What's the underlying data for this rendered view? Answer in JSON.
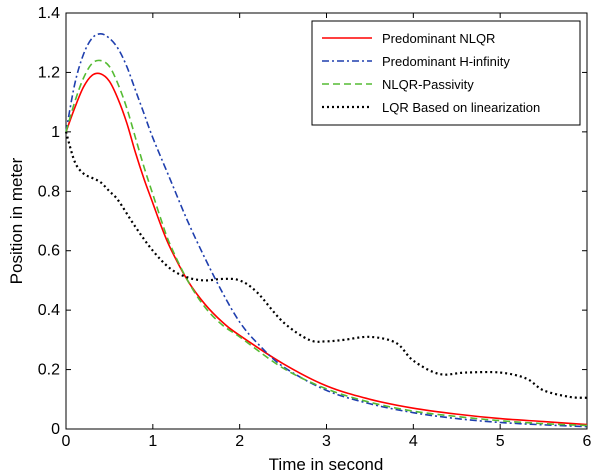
{
  "chart_data": {
    "type": "line",
    "xlabel": "Time in second",
    "ylabel": "Position in meter",
    "xlim": [
      0,
      6
    ],
    "ylim": [
      0,
      1.4
    ],
    "xticks": [
      0,
      1,
      2,
      3,
      4,
      5,
      6
    ],
    "yticks": [
      0,
      0.2,
      0.4,
      0.6,
      0.8,
      1,
      1.2,
      1.4
    ],
    "xtick_labels": [
      "0",
      "1",
      "2",
      "3",
      "4",
      "5",
      "6"
    ],
    "ytick_labels": [
      "0",
      "0.2",
      "0.4",
      "0.6",
      "0.8",
      "1",
      "1.2",
      "1.4"
    ],
    "grid": false,
    "legend_position": "top-right",
    "series": [
      {
        "name": "Predominant NLQR",
        "color": "#ff0000",
        "style": "solid",
        "x": [
          0,
          0.1,
          0.2,
          0.3,
          0.4,
          0.5,
          0.6,
          0.7,
          0.8,
          0.9,
          1.0,
          1.1,
          1.2,
          1.4,
          1.6,
          1.8,
          2.0,
          2.5,
          3.0,
          3.5,
          4.0,
          4.5,
          5.0,
          5.5,
          6.0
        ],
        "y": [
          1.0,
          1.08,
          1.15,
          1.19,
          1.195,
          1.17,
          1.11,
          1.03,
          0.93,
          0.84,
          0.76,
          0.68,
          0.61,
          0.5,
          0.42,
          0.36,
          0.315,
          0.22,
          0.145,
          0.1,
          0.07,
          0.05,
          0.035,
          0.025,
          0.015
        ]
      },
      {
        "name": "Predominant H-infinity",
        "color": "#1f3fae",
        "style": "dashdot",
        "x": [
          0,
          0.1,
          0.2,
          0.3,
          0.4,
          0.5,
          0.6,
          0.7,
          0.8,
          0.9,
          1.0,
          1.2,
          1.4,
          1.6,
          1.8,
          2.0,
          2.2,
          2.5,
          3.0,
          3.5,
          4.0,
          4.5,
          5.0,
          5.5,
          6.0
        ],
        "y": [
          1.0,
          1.16,
          1.26,
          1.315,
          1.33,
          1.315,
          1.28,
          1.22,
          1.14,
          1.06,
          0.98,
          0.84,
          0.7,
          0.575,
          0.46,
          0.36,
          0.29,
          0.21,
          0.13,
          0.085,
          0.055,
          0.035,
          0.022,
          0.014,
          0.008
        ]
      },
      {
        "name": "NLQR-Passivity",
        "color": "#55bb33",
        "style": "dashed",
        "x": [
          0,
          0.1,
          0.2,
          0.3,
          0.4,
          0.5,
          0.6,
          0.7,
          0.8,
          0.9,
          1.0,
          1.1,
          1.2,
          1.4,
          1.6,
          1.8,
          2.0,
          2.5,
          3.0,
          3.5,
          4.0,
          4.5,
          5.0,
          5.5,
          6.0
        ],
        "y": [
          1.0,
          1.1,
          1.18,
          1.23,
          1.24,
          1.22,
          1.16,
          1.08,
          0.98,
          0.88,
          0.79,
          0.7,
          0.62,
          0.5,
          0.41,
          0.35,
          0.31,
          0.205,
          0.135,
          0.09,
          0.06,
          0.042,
          0.028,
          0.018,
          0.012
        ]
      },
      {
        "name": "LQR Based on linearization",
        "color": "#000000",
        "style": "dotted",
        "x": [
          0,
          0.1,
          0.2,
          0.3,
          0.4,
          0.5,
          0.6,
          0.8,
          1.0,
          1.2,
          1.4,
          1.6,
          1.8,
          2.0,
          2.2,
          2.5,
          2.8,
          3.0,
          3.2,
          3.5,
          3.8,
          4.0,
          4.3,
          4.6,
          5.0,
          5.3,
          5.5,
          5.8,
          6.0
        ],
        "y": [
          1.0,
          0.9,
          0.86,
          0.845,
          0.83,
          0.8,
          0.77,
          0.68,
          0.6,
          0.54,
          0.51,
          0.5,
          0.505,
          0.5,
          0.46,
          0.36,
          0.3,
          0.295,
          0.3,
          0.31,
          0.29,
          0.23,
          0.185,
          0.19,
          0.19,
          0.17,
          0.13,
          0.108,
          0.105
        ]
      }
    ]
  }
}
